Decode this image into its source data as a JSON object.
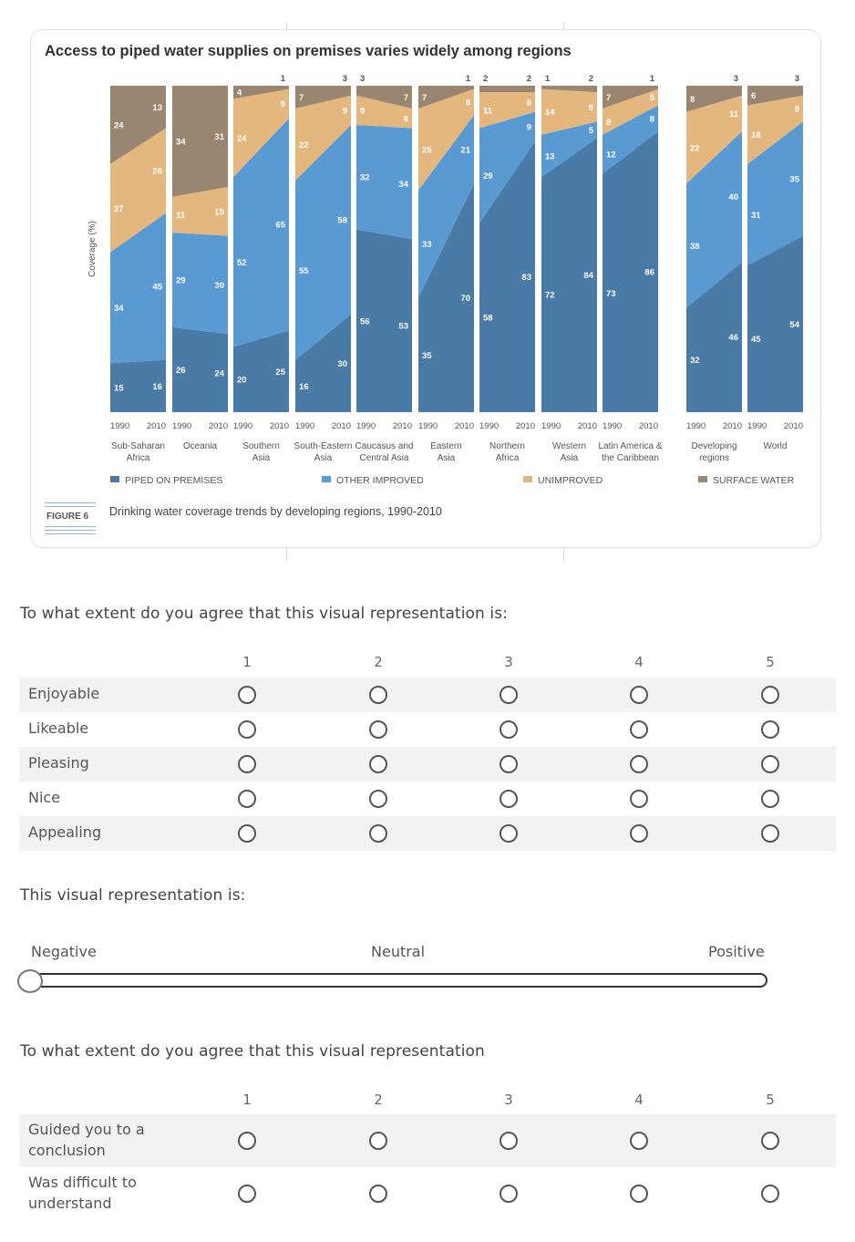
{
  "figure": {
    "title": "Access to piped water supplies on premises varies widely among regions",
    "tag": "FIGURE 6",
    "caption": "Drinking water coverage trends by developing regions, 1990-2010",
    "y_label": "Coverage (%)"
  },
  "chart_data": {
    "type": "area",
    "title": "Access to piped water supplies on premises varies widely among regions",
    "ylabel": "Coverage (%)",
    "ylim": [
      0,
      100
    ],
    "categories": [
      "1990",
      "2010"
    ],
    "legend_position": "bottom",
    "series_names": [
      "PIPED ON PREMISES",
      "OTHER IMPROVED",
      "UNIMPROVED",
      "SURFACE WATER"
    ],
    "colors": {
      "piped": "#4a7aa6",
      "other": "#5a9ad3",
      "unimproved": "#e3b77e",
      "surface": "#9a8670"
    },
    "regions": [
      {
        "name": [
          "Sub-Saharan",
          "Africa"
        ],
        "y1990": [
          15,
          34,
          27,
          24
        ],
        "y2010": [
          16,
          45,
          26,
          13
        ]
      },
      {
        "name": [
          "Oceania"
        ],
        "y1990": [
          26,
          29,
          11,
          34
        ],
        "y2010": [
          24,
          30,
          15,
          31
        ]
      },
      {
        "name": [
          "Southern",
          "Asia"
        ],
        "y1990": [
          20,
          52,
          24,
          4
        ],
        "y2010": [
          25,
          65,
          9,
          1
        ]
      },
      {
        "name": [
          "South-Eastern",
          "Asia"
        ],
        "y1990": [
          16,
          55,
          22,
          7
        ],
        "y2010": [
          30,
          58,
          9,
          3
        ]
      },
      {
        "name": [
          "Caucasus and",
          "Central Asia"
        ],
        "y1990": [
          56,
          32,
          9,
          3
        ],
        "y2010": [
          53,
          34,
          6,
          7
        ]
      },
      {
        "name": [
          "Eastern",
          "Asia"
        ],
        "y1990": [
          35,
          33,
          25,
          7
        ],
        "y2010": [
          70,
          21,
          8,
          1
        ]
      },
      {
        "name": [
          "Northern",
          "Africa"
        ],
        "y1990": [
          58,
          29,
          11,
          2
        ],
        "y2010": [
          83,
          9,
          6,
          2
        ]
      },
      {
        "name": [
          "Western",
          "Asia"
        ],
        "y1990": [
          72,
          13,
          14,
          1
        ],
        "y2010": [
          84,
          5,
          9,
          2
        ]
      },
      {
        "name": [
          "Latin America &",
          "the Caribbean"
        ],
        "y1990": [
          73,
          12,
          8,
          7
        ],
        "y2010": [
          86,
          8,
          5,
          1
        ]
      },
      {
        "name": [
          "Developing",
          "regions"
        ],
        "y1990": [
          32,
          38,
          22,
          8
        ],
        "y2010": [
          46,
          40,
          11,
          3
        ]
      },
      {
        "name": [
          "World"
        ],
        "y1990": [
          45,
          31,
          18,
          6
        ],
        "y2010": [
          54,
          35,
          8,
          3
        ]
      }
    ]
  },
  "survey": {
    "q1_title": "To what extent do you agree that this visual representation is:",
    "q1_scale": [
      "1",
      "2",
      "3",
      "4",
      "5"
    ],
    "q1_rows": [
      "Enjoyable",
      "Likeable",
      "Pleasing",
      "Nice",
      "Appealing"
    ],
    "q2_title": "This visual representation is:",
    "q2_labels": {
      "left": "Negative",
      "center": "Neutral",
      "right": "Positive"
    },
    "q2_value_fraction": 0.0,
    "q3_title": "To what extent do you agree that this visual representation",
    "q3_scale": [
      "1",
      "2",
      "3",
      "4",
      "5"
    ],
    "q3_rows": [
      "Guided you to a conclusion",
      "Was difficult to understand"
    ]
  }
}
